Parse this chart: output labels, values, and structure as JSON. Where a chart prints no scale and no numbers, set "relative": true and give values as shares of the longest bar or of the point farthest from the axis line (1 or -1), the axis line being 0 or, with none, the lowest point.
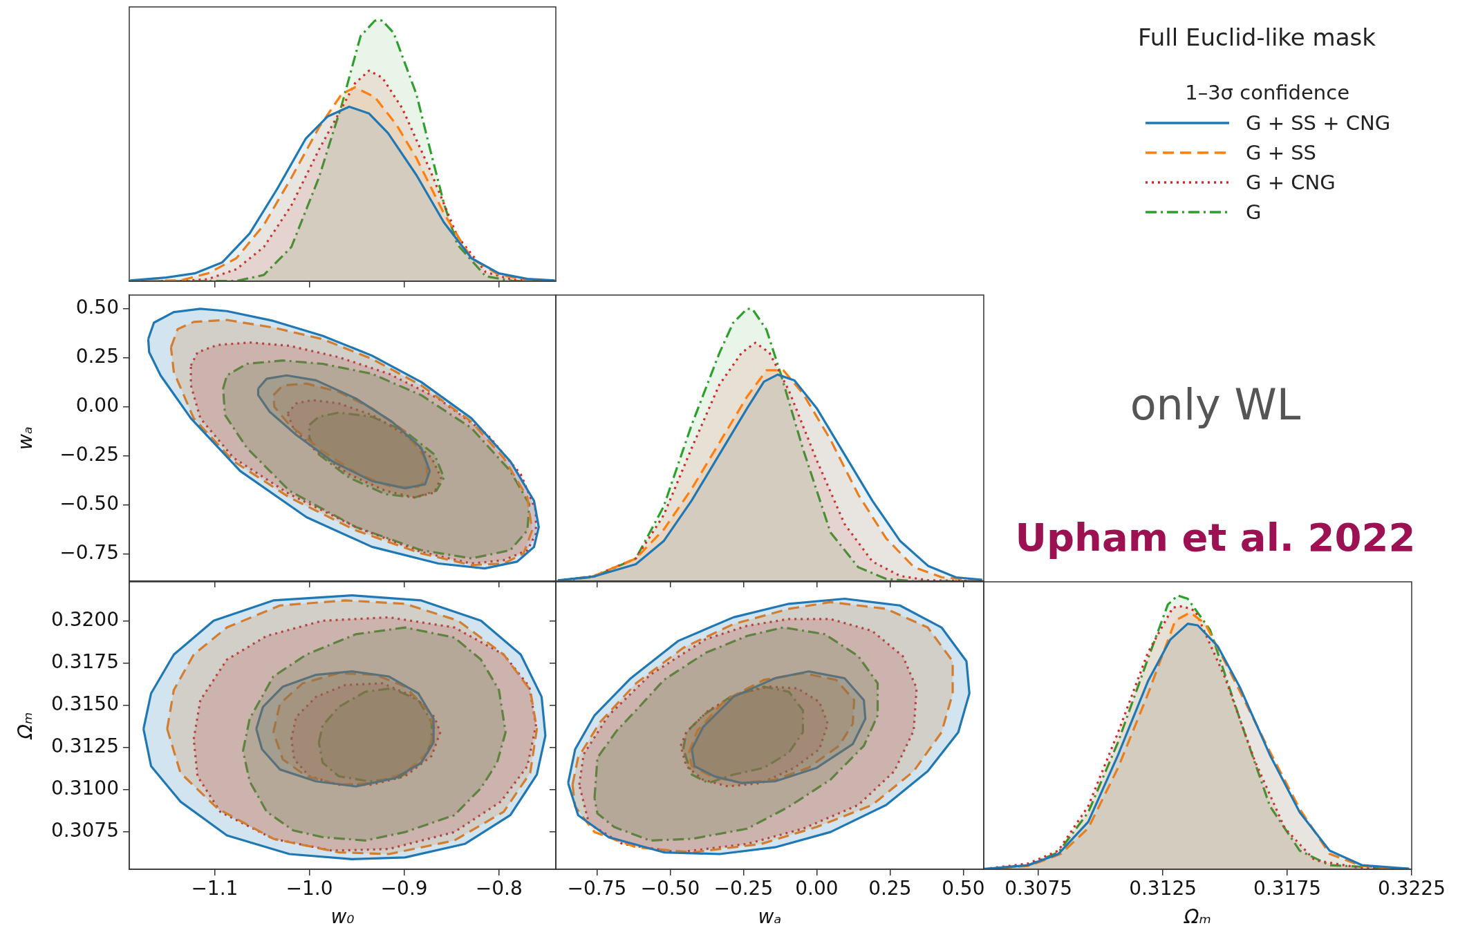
{
  "chart_data": [
    {
      "type": "area",
      "relative": true,
      "xlim": [
        -1.19,
        -0.74
      ],
      "xticks": [
        {
          "value": -1.1,
          "label": null
        },
        {
          "value": -1.0,
          "label": null
        },
        {
          "value": -0.9,
          "label": null
        },
        {
          "value": -0.8,
          "label": null
        }
      ],
      "tick_labels": false,
      "legend": "right",
      "legend_title": "1–3σ confidence",
      "annotations": [
        "Full Euclid-like mask",
        "only WL",
        "Upham et al. 2022"
      ],
      "series": [
        {
          "name": "G + SS + CNG",
          "color": "#1f77b4",
          "line_style": "solid",
          "x": [
            -1.189,
            -1.151,
            -1.121,
            -1.092,
            -1.063,
            -1.034,
            -1.004,
            -0.981,
            -0.958,
            -0.937,
            -0.917,
            -0.887,
            -0.858,
            -0.829,
            -0.8,
            -0.77,
            -0.741
          ],
          "values": [
            0.003,
            0.014,
            0.03,
            0.072,
            0.183,
            0.353,
            0.545,
            0.63,
            0.668,
            0.642,
            0.567,
            0.406,
            0.225,
            0.088,
            0.03,
            0.009,
            0.003
          ]
        },
        {
          "name": "G + SS",
          "color": "#ff7f0e",
          "line_style": "dashed",
          "x": [
            -1.189,
            -1.136,
            -1.107,
            -1.077,
            -1.048,
            -1.019,
            -0.99,
            -0.966,
            -0.952,
            -0.931,
            -0.908,
            -0.887,
            -0.858,
            -0.829,
            -0.8,
            -0.77,
            -0.741
          ],
          "values": [
            0.001,
            0.003,
            0.03,
            0.088,
            0.216,
            0.396,
            0.588,
            0.716,
            0.742,
            0.705,
            0.598,
            0.471,
            0.259,
            0.088,
            0.024,
            0.005,
            0.001
          ]
        },
        {
          "name": "G + CNG",
          "color": "#d62728",
          "line_style": "dotted",
          "x": [
            -1.189,
            -1.136,
            -1.107,
            -1.077,
            -1.048,
            -1.019,
            -0.99,
            -0.966,
            -0.952,
            -0.937,
            -0.923,
            -0.902,
            -0.873,
            -0.844,
            -0.814,
            -0.785,
            -0.741
          ],
          "values": [
            0,
            0.001,
            0.008,
            0.046,
            0.131,
            0.29,
            0.503,
            0.662,
            0.757,
            0.806,
            0.779,
            0.662,
            0.428,
            0.173,
            0.035,
            0.005,
            0
          ]
        },
        {
          "name": "G",
          "color": "#2ca02c",
          "line_style": "dashdot",
          "x": [
            -1.189,
            -1.077,
            -1.048,
            -1.019,
            -0.99,
            -0.966,
            -0.946,
            -0.931,
            -0.927,
            -0.923,
            -0.911,
            -0.887,
            -0.873,
            -0.858,
            -0.844,
            -0.814,
            -0.785,
            -0.741
          ],
          "values": [
            0,
            0.001,
            0.024,
            0.131,
            0.396,
            0.673,
            0.938,
            0.997,
            1,
            0.997,
            0.95,
            0.715,
            0.51,
            0.297,
            0.141,
            0.019,
            0.001,
            0
          ]
        }
      ]
    },
    {
      "type": "area",
      "xlim": [
        -1.19,
        -0.74
      ],
      "ylim": [
        -0.89,
        0.57
      ],
      "xticks": [
        {
          "value": -1.1,
          "label": null
        },
        {
          "value": -1.0,
          "label": null
        },
        {
          "value": -0.9,
          "label": null
        },
        {
          "value": -0.8,
          "label": null
        }
      ],
      "yticks": [
        {
          "value": 0.5,
          "label": "0.50"
        },
        {
          "value": 0.25,
          "label": "0.25"
        },
        {
          "value": 0,
          "label": "0.00"
        },
        {
          "value": -0.25,
          "label": "−0.25"
        },
        {
          "value": -0.5,
          "label": "−0.50"
        },
        {
          "value": -0.75,
          "label": "−0.75"
        }
      ],
      "ylabel": "wₐ",
      "tick_labels": "y",
      "series": [
        {
          "color": "#1f77b4",
          "line_style": "solid",
          "x": [
            -1.17,
            -1.164,
            -1.143,
            -1.115,
            -1.087,
            -1.038,
            -0.986,
            -0.934,
            -0.882,
            -0.829,
            -0.788,
            -0.763,
            -0.758,
            -0.763,
            -0.781,
            -0.815,
            -0.864,
            -0.934,
            -1.003,
            -1.073,
            -1.125,
            -1.157,
            -1.169,
            -1.17
          ],
          "values": [
            0.345,
            0.429,
            0.483,
            0.5,
            0.488,
            0.438,
            0.362,
            0.261,
            0.126,
            -0.059,
            -0.278,
            -0.48,
            -0.614,
            -0.716,
            -0.791,
            -0.825,
            -0.8,
            -0.715,
            -0.564,
            -0.328,
            -0.059,
            0.16,
            0.278,
            0.345
          ]
        },
        {
          "color": "#ff7f0e",
          "line_style": "dashed",
          "x": [
            -1.146,
            -1.139,
            -1.122,
            -1.087,
            -1.038,
            -0.986,
            -0.934,
            -0.882,
            -0.829,
            -0.795,
            -0.77,
            -0.765,
            -0.774,
            -0.795,
            -0.829,
            -0.882,
            -0.951,
            -1.021,
            -1.08,
            -1.122,
            -1.143,
            -1.146
          ],
          "values": [
            0.303,
            0.396,
            0.433,
            0.443,
            0.404,
            0.345,
            0.244,
            0.109,
            -0.076,
            -0.261,
            -0.463,
            -0.631,
            -0.749,
            -0.8,
            -0.808,
            -0.749,
            -0.631,
            -0.463,
            -0.278,
            -0.059,
            0.177,
            0.303
          ]
        },
        {
          "color": "#d62728",
          "line_style": "dotted",
          "x": [
            -1.125,
            -1.118,
            -1.097,
            -1.063,
            -1.021,
            -0.969,
            -0.916,
            -0.864,
            -0.812,
            -0.777,
            -0.761,
            -0.761,
            -0.77,
            -0.795,
            -0.829,
            -0.882,
            -0.951,
            -1.021,
            -1.08,
            -1.115,
            -1.125,
            -1.125
          ],
          "values": [
            0.21,
            0.278,
            0.315,
            0.328,
            0.311,
            0.253,
            0.168,
            0.042,
            -0.143,
            -0.345,
            -0.53,
            -0.648,
            -0.732,
            -0.783,
            -0.8,
            -0.741,
            -0.614,
            -0.446,
            -0.261,
            -0.059,
            0.109,
            0.21
          ]
        },
        {
          "color": "#2ca02c",
          "line_style": "dashdot",
          "x": [
            -1.091,
            -1.087,
            -1.066,
            -1.028,
            -0.986,
            -0.934,
            -0.882,
            -0.829,
            -0.788,
            -0.768,
            -0.77,
            -0.788,
            -0.829,
            -0.882,
            -0.951,
            -1.021,
            -1.066,
            -1.089,
            -1.091
          ],
          "values": [
            0.093,
            0.16,
            0.219,
            0.236,
            0.219,
            0.168,
            0.059,
            -0.109,
            -0.328,
            -0.497,
            -0.631,
            -0.732,
            -0.774,
            -0.732,
            -0.614,
            -0.429,
            -0.21,
            -0.042,
            0.093
          ]
        },
        {
          "color": "#1f77b4",
          "line_style": "solid",
          "x": [
            -1.054,
            -1.045,
            -1.024,
            -0.993,
            -0.951,
            -0.913,
            -0.882,
            -0.873,
            -0.878,
            -0.899,
            -0.934,
            -0.976,
            -1.014,
            -1.042,
            -1.054,
            -1.054
          ],
          "values": [
            0.093,
            0.143,
            0.16,
            0.135,
            0.042,
            -0.076,
            -0.21,
            -0.328,
            -0.396,
            -0.416,
            -0.379,
            -0.278,
            -0.143,
            -0.025,
            0.059,
            0.093
          ]
        },
        {
          "color": "#ff7f0e",
          "line_style": "dashed",
          "x": [
            -1.038,
            -1.028,
            -1.003,
            -0.969,
            -0.934,
            -0.899,
            -0.878,
            -0.875,
            -0.885,
            -0.913,
            -0.948,
            -0.986,
            -1.021,
            -1.037,
            -1.038
          ],
          "values": [
            0.059,
            0.109,
            0.118,
            0.076,
            -0.008,
            -0.126,
            -0.261,
            -0.362,
            -0.409,
            -0.409,
            -0.345,
            -0.227,
            -0.093,
            0,
            0.059
          ]
        },
        {
          "color": "#d62728",
          "line_style": "dotted",
          "x": [
            -1.023,
            -1.014,
            -0.997,
            -0.969,
            -0.934,
            -0.899,
            -0.871,
            -0.861,
            -0.868,
            -0.889,
            -0.92,
            -0.958,
            -0.993,
            -1.017,
            -1.023
          ],
          "values": [
            -0.034,
            0.017,
            0.034,
            0.017,
            -0.042,
            -0.143,
            -0.261,
            -0.362,
            -0.438,
            -0.463,
            -0.429,
            -0.345,
            -0.227,
            -0.109,
            -0.034
          ]
        },
        {
          "color": "#2ca02c",
          "line_style": "dashdot",
          "x": [
            -1.0,
            -0.99,
            -0.969,
            -0.934,
            -0.899,
            -0.868,
            -0.858,
            -0.866,
            -0.889,
            -0.92,
            -0.958,
            -0.99,
            -1.0,
            -1.0
          ],
          "values": [
            -0.093,
            -0.051,
            -0.03,
            -0.051,
            -0.126,
            -0.244,
            -0.362,
            -0.429,
            -0.463,
            -0.446,
            -0.362,
            -0.244,
            -0.16,
            -0.093
          ]
        }
      ]
    },
    {
      "type": "area",
      "relative": true,
      "xlim": [
        -0.89,
        0.57
      ],
      "xticks": [
        {
          "value": -0.75,
          "label": null
        },
        {
          "value": -0.5,
          "label": null
        },
        {
          "value": -0.25,
          "label": null
        },
        {
          "value": 0,
          "label": null
        },
        {
          "value": 0.25,
          "label": null
        },
        {
          "value": 0.5,
          "label": null
        }
      ],
      "tick_labels": false,
      "series": [
        {
          "color": "#1f77b4",
          "line_style": "solid",
          "x": [
            -0.883,
            -0.76,
            -0.617,
            -0.522,
            -0.427,
            -0.332,
            -0.237,
            -0.18,
            -0.133,
            -0.076,
            0,
            0.095,
            0.19,
            0.285,
            0.38,
            0.475,
            0.565
          ],
          "values": [
            0.003,
            0.017,
            0.062,
            0.147,
            0.295,
            0.465,
            0.635,
            0.732,
            0.758,
            0.737,
            0.635,
            0.465,
            0.295,
            0.147,
            0.056,
            0.014,
            0.005
          ]
        },
        {
          "color": "#ff7f0e",
          "line_style": "dashed",
          "x": [
            -0.883,
            -0.76,
            -0.617,
            -0.522,
            -0.427,
            -0.332,
            -0.237,
            -0.171,
            -0.114,
            -0.047,
            0.047,
            0.142,
            0.237,
            0.332,
            0.427,
            0.565
          ],
          "values": [
            0,
            0.019,
            0.083,
            0.189,
            0.338,
            0.508,
            0.678,
            0.774,
            0.774,
            0.689,
            0.519,
            0.317,
            0.157,
            0.051,
            0.014,
            0.002
          ]
        },
        {
          "color": "#d62728",
          "line_style": "dotted",
          "x": [
            -0.883,
            -0.76,
            -0.617,
            -0.522,
            -0.427,
            -0.332,
            -0.256,
            -0.209,
            -0.161,
            -0.095,
            0,
            0.095,
            0.19,
            0.285,
            0.38,
            0.565
          ],
          "values": [
            0.002,
            0.019,
            0.083,
            0.242,
            0.487,
            0.721,
            0.838,
            0.875,
            0.838,
            0.7,
            0.444,
            0.21,
            0.072,
            0.019,
            0.003,
            0
          ]
        },
        {
          "color": "#2ca02c",
          "line_style": "dashdot",
          "x": [
            -0.883,
            -0.76,
            -0.617,
            -0.522,
            -0.427,
            -0.332,
            -0.285,
            -0.237,
            -0.218,
            -0.171,
            -0.123,
            -0.047,
            0.047,
            0.142,
            0.237,
            0.332,
            0.565
          ],
          "values": [
            0,
            0.016,
            0.083,
            0.274,
            0.572,
            0.837,
            0.948,
            1,
            0.997,
            0.922,
            0.762,
            0.486,
            0.179,
            0.051,
            0.008,
            0,
            0
          ]
        }
      ]
    },
    {
      "type": "area",
      "xlim": [
        -1.19,
        -0.74
      ],
      "ylim": [
        0.3053,
        0.3223
      ],
      "xticks": [
        {
          "value": -1.1,
          "label": "−1.1"
        },
        {
          "value": -1.0,
          "label": "−1.0"
        },
        {
          "value": -0.9,
          "label": "−0.9"
        },
        {
          "value": -0.8,
          "label": "−0.8"
        }
      ],
      "yticks": [
        {
          "value": 0.32,
          "label": "0.3200"
        },
        0.3175,
        {
          "value": 0.315,
          "label": "0.3150"
        },
        0.3125,
        {
          "value": 0.31,
          "label": "0.3100"
        },
        0.3075
      ],
      "xlabel": "w₀",
      "ylabel": "Ωₘ",
      "series": [
        {
          "color": "#1f77b4",
          "line_style": "solid",
          "x": [
            -1.175,
            -1.167,
            -1.143,
            -1.101,
            -1.038,
            -0.955,
            -0.882,
            -0.819,
            -0.777,
            -0.755,
            -0.751,
            -0.76,
            -0.788,
            -0.836,
            -0.899,
            -0.955,
            -1.021,
            -1.087,
            -1.136,
            -1.167,
            -1.175
          ],
          "values": [
            0.3136,
            0.3157,
            0.318,
            0.32,
            0.3212,
            0.3215,
            0.3212,
            0.32,
            0.318,
            0.3155,
            0.3132,
            0.3109,
            0.3085,
            0.3068,
            0.306,
            0.3059,
            0.3062,
            0.3073,
            0.3093,
            0.3114,
            0.3136
          ]
        },
        {
          "color": "#ff7f0e",
          "line_style": "dashed",
          "x": [
            -1.15,
            -1.143,
            -1.122,
            -1.087,
            -1.031,
            -0.962,
            -0.899,
            -0.843,
            -0.795,
            -0.767,
            -0.76,
            -0.767,
            -0.795,
            -0.847,
            -0.916,
            -0.969,
            -1.038,
            -1.097,
            -1.136,
            -1.15
          ],
          "values": [
            0.3136,
            0.3159,
            0.318,
            0.3196,
            0.3209,
            0.3212,
            0.321,
            0.32,
            0.318,
            0.3159,
            0.3136,
            0.311,
            0.3087,
            0.307,
            0.3062,
            0.3063,
            0.3071,
            0.3089,
            0.311,
            0.3136
          ]
        },
        {
          "color": "#d62728",
          "line_style": "dotted",
          "x": [
            -1.122,
            -1.115,
            -1.087,
            -1.045,
            -0.986,
            -0.916,
            -0.847,
            -0.795,
            -0.768,
            -0.761,
            -0.77,
            -0.798,
            -0.847,
            -0.916,
            -0.976,
            -1.038,
            -1.094,
            -1.118,
            -1.122
          ],
          "values": [
            0.313,
            0.3153,
            0.3177,
            0.3191,
            0.32,
            0.3202,
            0.3196,
            0.318,
            0.3161,
            0.3138,
            0.3114,
            0.3093,
            0.3075,
            0.3065,
            0.3064,
            0.3071,
            0.3087,
            0.3108,
            0.313
          ]
        },
        {
          "color": "#2ca02c",
          "line_style": "dashdot",
          "x": [
            -1.07,
            -1.063,
            -1.038,
            -1.003,
            -0.951,
            -0.899,
            -0.847,
            -0.819,
            -0.8,
            -0.793,
            -0.802,
            -0.819,
            -0.847,
            -0.899,
            -0.941,
            -0.986,
            -1.017,
            -1.045,
            -1.063,
            -1.07
          ],
          "values": [
            0.3123,
            0.3142,
            0.3167,
            0.318,
            0.3192,
            0.3196,
            0.319,
            0.3177,
            0.3159,
            0.3134,
            0.3116,
            0.3101,
            0.3085,
            0.3075,
            0.307,
            0.3072,
            0.3076,
            0.3087,
            0.3105,
            0.3123
          ]
        },
        {
          "color": "#1f77b4",
          "line_style": "solid",
          "x": [
            -1.056,
            -1.049,
            -1.028,
            -0.993,
            -0.955,
            -0.916,
            -0.885,
            -0.869,
            -0.869,
            -0.882,
            -0.909,
            -0.951,
            -0.993,
            -1.031,
            -1.05,
            -1.056
          ],
          "values": [
            0.3136,
            0.3149,
            0.3161,
            0.3168,
            0.317,
            0.3167,
            0.3157,
            0.3142,
            0.3128,
            0.3116,
            0.3107,
            0.3102,
            0.3105,
            0.3112,
            0.3124,
            0.3136
          ]
        },
        {
          "color": "#ff7f0e",
          "line_style": "dashed",
          "x": [
            -1.038,
            -1.031,
            -1.007,
            -0.969,
            -0.93,
            -0.899,
            -0.875,
            -0.868,
            -0.875,
            -0.899,
            -0.934,
            -0.969,
            -1.003,
            -1.028,
            -1.038
          ],
          "values": [
            0.3134,
            0.3151,
            0.3163,
            0.3169,
            0.3168,
            0.3161,
            0.3147,
            0.3136,
            0.3122,
            0.311,
            0.3104,
            0.3103,
            0.3108,
            0.3118,
            0.3134
          ]
        },
        {
          "color": "#d62728",
          "line_style": "dotted",
          "x": [
            -1.019,
            -1.014,
            -0.993,
            -0.962,
            -0.923,
            -0.889,
            -0.868,
            -0.862,
            -0.871,
            -0.899,
            -0.934,
            -0.969,
            -1.0,
            -1.016,
            -1.019
          ],
          "values": [
            0.313,
            0.3143,
            0.3155,
            0.3162,
            0.3163,
            0.3155,
            0.3143,
            0.3134,
            0.312,
            0.3108,
            0.3103,
            0.3103,
            0.3108,
            0.3118,
            0.313
          ]
        },
        {
          "color": "#2ca02c",
          "line_style": "dashdot",
          "x": [
            -0.99,
            -0.986,
            -0.969,
            -0.941,
            -0.913,
            -0.885,
            -0.871,
            -0.871,
            -0.882,
            -0.906,
            -0.937,
            -0.969,
            -0.986,
            -0.99
          ],
          "values": [
            0.3128,
            0.3138,
            0.3149,
            0.3158,
            0.316,
            0.3153,
            0.314,
            0.3128,
            0.3116,
            0.3107,
            0.3105,
            0.3108,
            0.3116,
            0.3128
          ]
        }
      ]
    },
    {
      "type": "area",
      "xlim": [
        -0.89,
        0.57
      ],
      "ylim": [
        0.3053,
        0.3223
      ],
      "xticks": [
        {
          "value": -0.75,
          "label": "−0.75"
        },
        {
          "value": -0.5,
          "label": "−0.50"
        },
        {
          "value": -0.25,
          "label": "−0.25"
        },
        {
          "value": 0,
          "label": "0.00"
        },
        {
          "value": 0.25,
          "label": "0.25"
        },
        {
          "value": 0.5,
          "label": "0.50"
        }
      ],
      "yticks": [
        {
          "value": 0.32,
          "label": null
        },
        {
          "value": 0.3175,
          "label": null
        },
        {
          "value": 0.315,
          "label": null
        },
        {
          "value": 0.3125,
          "label": null
        },
        {
          "value": 0.31,
          "label": null
        },
        {
          "value": 0.3075,
          "label": null
        }
      ],
      "xlabel": "wₐ",
      "tick_labels": "x",
      "series": [
        {
          "color": "#1f77b4",
          "line_style": "solid",
          "x": [
            -0.848,
            -0.824,
            -0.758,
            -0.634,
            -0.473,
            -0.284,
            -0.095,
            0.095,
            0.284,
            0.426,
            0.511,
            0.521,
            0.483,
            0.379,
            0.237,
            0.047,
            -0.142,
            -0.331,
            -0.521,
            -0.71,
            -0.814,
            -0.848
          ],
          "values": [
            0.3104,
            0.3124,
            0.3144,
            0.3166,
            0.3188,
            0.3202,
            0.321,
            0.3213,
            0.3209,
            0.3196,
            0.3176,
            0.3157,
            0.3134,
            0.3111,
            0.3091,
            0.3075,
            0.3066,
            0.3062,
            0.3063,
            0.3072,
            0.3085,
            0.3104
          ]
        },
        {
          "color": "#ff7f0e",
          "line_style": "dashed",
          "x": [
            -0.833,
            -0.814,
            -0.739,
            -0.616,
            -0.455,
            -0.284,
            -0.095,
            0.047,
            0.237,
            0.379,
            0.464,
            0.464,
            0.426,
            0.331,
            0.189,
            0,
            -0.189,
            -0.426,
            -0.616,
            -0.758,
            -0.824,
            -0.833
          ],
          "values": [
            0.3103,
            0.3119,
            0.314,
            0.3163,
            0.3184,
            0.3198,
            0.3207,
            0.3211,
            0.3207,
            0.3196,
            0.3176,
            0.3157,
            0.3134,
            0.3111,
            0.3091,
            0.3078,
            0.3068,
            0.3063,
            0.3066,
            0.3075,
            0.309,
            0.3103
          ]
        },
        {
          "color": "#d62728",
          "line_style": "dotted",
          "x": [
            -0.81,
            -0.795,
            -0.71,
            -0.568,
            -0.379,
            -0.237,
            -0.095,
            0.047,
            0.189,
            0.294,
            0.341,
            0.331,
            0.265,
            0.142,
            -0.047,
            -0.237,
            -0.473,
            -0.663,
            -0.777,
            -0.81
          ],
          "values": [
            0.3103,
            0.3121,
            0.3144,
            0.3168,
            0.3189,
            0.3197,
            0.3201,
            0.3201,
            0.3194,
            0.3179,
            0.316,
            0.3135,
            0.3111,
            0.3091,
            0.3077,
            0.3068,
            0.3063,
            0.3068,
            0.308,
            0.3103
          ]
        },
        {
          "color": "#2ca02c",
          "line_style": "dashdot",
          "x": [
            -0.758,
            -0.748,
            -0.682,
            -0.616,
            -0.521,
            -0.379,
            -0.237,
            -0.114,
            0.028,
            0.142,
            0.208,
            0.208,
            0.161,
            0.047,
            -0.095,
            -0.237,
            -0.426,
            -0.568,
            -0.691,
            -0.748,
            -0.758
          ],
          "values": [
            0.3095,
            0.3119,
            0.3135,
            0.3147,
            0.3165,
            0.3181,
            0.3191,
            0.3196,
            0.3192,
            0.3179,
            0.3163,
            0.3144,
            0.3126,
            0.3106,
            0.309,
            0.3077,
            0.3071,
            0.307,
            0.3078,
            0.3086,
            0.3095
          ]
        },
        {
          "color": "#1f77b4",
          "line_style": "solid",
          "x": [
            -0.426,
            -0.388,
            -0.284,
            -0.142,
            -0.028,
            0.095,
            0.161,
            0.166,
            0.123,
            0,
            -0.142,
            -0.256,
            -0.35,
            -0.417,
            -0.426
          ],
          "values": [
            0.3124,
            0.3137,
            0.3155,
            0.3166,
            0.317,
            0.3166,
            0.3153,
            0.3142,
            0.3127,
            0.3113,
            0.3105,
            0.3104,
            0.3108,
            0.3114,
            0.3124
          ]
        },
        {
          "color": "#ff7f0e",
          "line_style": "dashed",
          "x": [
            -0.436,
            -0.407,
            -0.313,
            -0.18,
            -0.047,
            0.066,
            0.128,
            0.123,
            0.076,
            -0.028,
            -0.142,
            -0.256,
            -0.36,
            -0.426,
            -0.436
          ],
          "values": [
            0.3122,
            0.3135,
            0.3153,
            0.3165,
            0.3169,
            0.3165,
            0.3153,
            0.3139,
            0.3126,
            0.3113,
            0.3106,
            0.3104,
            0.3108,
            0.3114,
            0.3122
          ]
        },
        {
          "color": "#d62728",
          "line_style": "dotted",
          "x": [
            -0.464,
            -0.445,
            -0.369,
            -0.265,
            -0.161,
            -0.066,
            0.009,
            0.038,
            0.009,
            -0.076,
            -0.189,
            -0.303,
            -0.388,
            -0.445,
            -0.464
          ],
          "values": [
            0.3126,
            0.3134,
            0.3147,
            0.3157,
            0.3161,
            0.316,
            0.3152,
            0.3139,
            0.3124,
            0.3113,
            0.3104,
            0.3102,
            0.3106,
            0.3114,
            0.3126
          ]
        },
        {
          "color": "#2ca02c",
          "line_style": "dashdot",
          "x": [
            -0.455,
            -0.445,
            -0.388,
            -0.294,
            -0.18,
            -0.095,
            -0.047,
            -0.047,
            -0.095,
            -0.18,
            -0.284,
            -0.369,
            -0.426,
            -0.455
          ],
          "values": [
            0.3124,
            0.3134,
            0.3144,
            0.3155,
            0.3161,
            0.3158,
            0.3147,
            0.3134,
            0.3122,
            0.3113,
            0.3109,
            0.3104,
            0.3109,
            0.3124
          ]
        }
      ]
    },
    {
      "type": "area",
      "relative": true,
      "xlim": [
        0.3053,
        0.3225
      ],
      "xticks": [
        0.3075,
        0.3125,
        0.3175,
        0.3225
      ],
      "xlabel": "Ωₘ",
      "tick_labels": "x",
      "series": [
        {
          "color": "#1f77b4",
          "line_style": "solid",
          "x": [
            0.3053,
            0.3071,
            0.3083,
            0.3095,
            0.3107,
            0.3119,
            0.3128,
            0.3135,
            0.3139,
            0.3147,
            0.3156,
            0.3168,
            0.318,
            0.3192,
            0.3205,
            0.3224
          ],
          "values": [
            0.001,
            0.015,
            0.056,
            0.173,
            0.418,
            0.687,
            0.839,
            0.897,
            0.891,
            0.815,
            0.664,
            0.418,
            0.208,
            0.068,
            0.015,
            0.002
          ]
        },
        {
          "color": "#ff7f0e",
          "line_style": "dashed",
          "x": [
            0.3053,
            0.3071,
            0.3084,
            0.3095,
            0.3107,
            0.3119,
            0.313,
            0.3136,
            0.3142,
            0.3152,
            0.3168,
            0.318,
            0.3192,
            0.3205,
            0.3224
          ],
          "values": [
            0.001,
            0.012,
            0.056,
            0.15,
            0.371,
            0.64,
            0.909,
            0.938,
            0.897,
            0.722,
            0.43,
            0.22,
            0.056,
            0.012,
            0
          ]
        },
        {
          "color": "#d62728",
          "line_style": "dotted",
          "x": [
            0.3053,
            0.3071,
            0.3083,
            0.3095,
            0.3107,
            0.3119,
            0.3129,
            0.3133,
            0.3138,
            0.315,
            0.3162,
            0.3174,
            0.3186,
            0.3205,
            0.3224
          ],
          "values": [
            0.001,
            0.021,
            0.068,
            0.231,
            0.5,
            0.792,
            0.956,
            0.961,
            0.944,
            0.699,
            0.395,
            0.15,
            0.033,
            0.004,
            0
          ]
        },
        {
          "color": "#2ca02c",
          "line_style": "dashdot",
          "x": [
            0.3053,
            0.3071,
            0.3083,
            0.3095,
            0.3107,
            0.3119,
            0.3127,
            0.3131,
            0.3135,
            0.3144,
            0.3156,
            0.3168,
            0.318,
            0.3192,
            0.3224
          ],
          "values": [
            0,
            0.015,
            0.062,
            0.208,
            0.465,
            0.769,
            0.967,
            1,
            0.988,
            0.874,
            0.547,
            0.231,
            0.068,
            0.015,
            0
          ]
        }
      ]
    }
  ]
}
